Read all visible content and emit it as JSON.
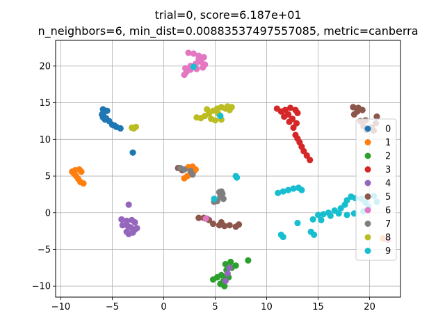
{
  "chart_data": {
    "type": "scatter",
    "title_lines": [
      "trial=0, score=6.187e+01",
      "n_neighbors=6, min_dist=0.00883537497557085, metric=canberra"
    ],
    "xlabel": "",
    "ylabel": "",
    "xlim": [
      -10.5,
      23
    ],
    "ylim": [
      -11.5,
      23.5
    ],
    "xticks": [
      -10,
      -5,
      0,
      5,
      10,
      15,
      20
    ],
    "yticks": [
      -10,
      -5,
      0,
      5,
      10,
      15,
      20
    ],
    "x_tick_labels": [
      "−10",
      "−5",
      "0",
      "5",
      "10",
      "15",
      "20"
    ],
    "y_tick_labels": [
      "−10",
      "−5",
      "0",
      "5",
      "10",
      "15",
      "20"
    ],
    "grid": true,
    "legend_position": "center-right",
    "series": [
      {
        "name": "0",
        "color": "#1f77b4",
        "points": [
          [
            -5.9,
            14.1
          ],
          [
            -5.8,
            13.7
          ],
          [
            -6.0,
            13.4
          ],
          [
            -5.9,
            13.0
          ],
          [
            -5.6,
            12.9
          ],
          [
            -5.3,
            12.5
          ],
          [
            -5.0,
            12.0
          ],
          [
            -4.6,
            11.7
          ],
          [
            -4.2,
            11.5
          ],
          [
            -5.7,
            12.7
          ],
          [
            -5.5,
            13.9
          ],
          [
            -4.8,
            11.9
          ],
          [
            -3.0,
            8.2
          ]
        ]
      },
      {
        "name": "1",
        "color": "#ff7f0e",
        "points": [
          [
            -8.9,
            5.6
          ],
          [
            -8.6,
            5.8
          ],
          [
            -8.2,
            5.9
          ],
          [
            -8.0,
            5.6
          ],
          [
            -8.5,
            5.0
          ],
          [
            -8.3,
            4.6
          ],
          [
            -8.1,
            4.2
          ],
          [
            -7.8,
            4.0
          ],
          [
            -8.7,
            5.3
          ],
          [
            2.0,
            4.7
          ],
          [
            2.3,
            5.0
          ],
          [
            2.6,
            5.3
          ],
          [
            2.9,
            5.6
          ],
          [
            3.1,
            5.9
          ],
          [
            2.4,
            6.2
          ],
          [
            2.8,
            6.3
          ],
          [
            21.6,
            -3.6
          ],
          [
            21.3,
            -3.5
          ]
        ]
      },
      {
        "name": "2",
        "color": "#2ca02c",
        "points": [
          [
            5.5,
            -9.7
          ],
          [
            5.8,
            -9.3
          ],
          [
            6.0,
            -8.9
          ],
          [
            5.6,
            -8.5
          ],
          [
            5.2,
            -8.8
          ],
          [
            4.8,
            -9.1
          ],
          [
            6.2,
            -8.3
          ],
          [
            6.1,
            -7.8
          ],
          [
            6.6,
            -7.5
          ],
          [
            6.0,
            -7.0
          ],
          [
            6.5,
            -6.7
          ],
          [
            7.0,
            -7.2
          ],
          [
            6.3,
            -8.8
          ],
          [
            8.2,
            -6.5
          ],
          [
            5.9,
            -10.0
          ]
        ]
      },
      {
        "name": "3",
        "color": "#d62728",
        "points": [
          [
            11.0,
            14.2
          ],
          [
            11.4,
            13.8
          ],
          [
            11.8,
            14.0
          ],
          [
            12.3,
            14.3
          ],
          [
            12.8,
            14.0
          ],
          [
            12.1,
            13.4
          ],
          [
            12.5,
            12.8
          ],
          [
            12.9,
            12.2
          ],
          [
            12.6,
            11.6
          ],
          [
            12.8,
            10.6
          ],
          [
            13.0,
            10.1
          ],
          [
            13.2,
            9.6
          ],
          [
            13.4,
            9.0
          ],
          [
            13.6,
            8.4
          ],
          [
            13.9,
            7.8
          ],
          [
            14.2,
            7.2
          ],
          [
            11.7,
            13.1
          ],
          [
            12.2,
            12.4
          ],
          [
            13.0,
            13.6
          ]
        ]
      },
      {
        "name": "4",
        "color": "#9467bd",
        "points": [
          [
            -3.4,
            1.1
          ],
          [
            -4.1,
            -0.9
          ],
          [
            -3.6,
            -1.1
          ],
          [
            -3.1,
            -1.0
          ],
          [
            -2.8,
            -1.3
          ],
          [
            -4.0,
            -1.7
          ],
          [
            -3.5,
            -1.8
          ],
          [
            -3.2,
            -2.0
          ],
          [
            -2.8,
            -2.3
          ],
          [
            -3.6,
            -2.6
          ],
          [
            -3.0,
            -2.7
          ],
          [
            -3.4,
            -2.9
          ],
          [
            -2.6,
            -2.1
          ],
          [
            4.2,
            -0.8
          ],
          [
            6.4,
            -7.5
          ],
          [
            6.2,
            -8.3
          ],
          [
            6.0,
            -9.3
          ]
        ]
      },
      {
        "name": "5",
        "color": "#8c564b",
        "points": [
          [
            1.4,
            6.1
          ],
          [
            1.8,
            5.8
          ],
          [
            3.4,
            -0.7
          ],
          [
            3.9,
            -0.7
          ],
          [
            4.4,
            -1.0
          ],
          [
            4.8,
            -1.5
          ],
          [
            5.4,
            -1.7
          ],
          [
            5.9,
            -1.8
          ],
          [
            6.4,
            -1.7
          ],
          [
            7.0,
            -1.9
          ],
          [
            7.3,
            -1.6
          ],
          [
            5.6,
            -1.3
          ],
          [
            18.4,
            14.4
          ],
          [
            18.9,
            14.3
          ],
          [
            19.3,
            14.0
          ],
          [
            18.5,
            13.4
          ],
          [
            19.1,
            12.5
          ],
          [
            19.4,
            11.8
          ],
          [
            19.7,
            11.3
          ],
          [
            20.2,
            11.6
          ],
          [
            20.6,
            12.2
          ],
          [
            20.7,
            13.1
          ],
          [
            20.4,
            11.2
          ],
          [
            19.6,
            12.6
          ],
          [
            18.8,
            13.8
          ]
        ]
      },
      {
        "name": "6",
        "color": "#e377c2",
        "points": [
          [
            2.4,
            21.8
          ],
          [
            2.9,
            21.7
          ],
          [
            3.4,
            21.4
          ],
          [
            3.9,
            21.2
          ],
          [
            3.6,
            20.6
          ],
          [
            3.1,
            20.3
          ],
          [
            2.6,
            20.0
          ],
          [
            2.1,
            19.7
          ],
          [
            2.2,
            19.2
          ],
          [
            2.0,
            18.8
          ],
          [
            2.6,
            19.5
          ],
          [
            3.2,
            19.6
          ],
          [
            3.8,
            19.8
          ],
          [
            4.0,
            20.2
          ],
          [
            3.4,
            20.9
          ],
          [
            4.1,
            -0.8
          ],
          [
            21.8,
            -3.7
          ]
        ]
      },
      {
        "name": "7",
        "color": "#7f7f7f",
        "points": [
          [
            1.6,
            6.1
          ],
          [
            2.0,
            5.9
          ],
          [
            2.6,
            5.7
          ],
          [
            2.8,
            5.2
          ],
          [
            5.4,
            2.8
          ],
          [
            5.7,
            2.6
          ],
          [
            5.5,
            2.2
          ],
          [
            5.8,
            1.9
          ],
          [
            5.2,
            1.6
          ],
          [
            4.9,
            1.5
          ],
          [
            5.6,
            2.9
          ]
        ]
      },
      {
        "name": "8",
        "color": "#bcbd22",
        "points": [
          [
            -3.1,
            11.6
          ],
          [
            -2.7,
            11.7
          ],
          [
            -2.9,
            11.5
          ],
          [
            3.2,
            13.0
          ],
          [
            3.6,
            12.9
          ],
          [
            4.0,
            13.2
          ],
          [
            4.4,
            13.5
          ],
          [
            4.8,
            13.9
          ],
          [
            5.2,
            14.2
          ],
          [
            5.6,
            14.4
          ],
          [
            6.0,
            14.2
          ],
          [
            6.4,
            14.0
          ],
          [
            4.2,
            14.1
          ],
          [
            4.6,
            12.8
          ],
          [
            5.0,
            12.6
          ],
          [
            5.6,
            12.7
          ],
          [
            6.2,
            14.5
          ],
          [
            6.6,
            14.4
          ],
          [
            5.3,
            13.5
          ]
        ]
      },
      {
        "name": "9",
        "color": "#17becf",
        "points": [
          [
            2.9,
            19.9
          ],
          [
            5.5,
            13.2
          ],
          [
            7.1,
            4.8
          ],
          [
            7.0,
            5.0
          ],
          [
            4.9,
            1.9
          ],
          [
            11.1,
            2.7
          ],
          [
            11.6,
            2.9
          ],
          [
            12.1,
            3.1
          ],
          [
            12.6,
            3.3
          ],
          [
            13.1,
            3.4
          ],
          [
            13.4,
            3.1
          ],
          [
            11.4,
            -3.0
          ],
          [
            11.6,
            -3.3
          ],
          [
            13.0,
            -1.4
          ],
          [
            14.3,
            -2.6
          ],
          [
            14.6,
            -3.0
          ],
          [
            14.5,
            -0.9
          ],
          [
            15.0,
            -0.3
          ],
          [
            15.5,
            -0.2
          ],
          [
            16.0,
            0.0
          ],
          [
            16.6,
            0.3
          ],
          [
            17.2,
            0.6
          ],
          [
            17.6,
            1.1
          ],
          [
            17.8,
            1.7
          ],
          [
            18.2,
            2.2
          ],
          [
            18.6,
            2.0
          ],
          [
            19.2,
            1.9
          ],
          [
            19.6,
            1.4
          ],
          [
            19.9,
            0.8
          ],
          [
            19.4,
            0.2
          ],
          [
            18.5,
            -0.1
          ],
          [
            17.8,
            -0.3
          ],
          [
            17.0,
            -0.1
          ],
          [
            16.2,
            -0.4
          ],
          [
            15.3,
            -1.0
          ],
          [
            20.4,
            2.3
          ],
          [
            20.7,
            1.5
          ]
        ]
      }
    ]
  }
}
